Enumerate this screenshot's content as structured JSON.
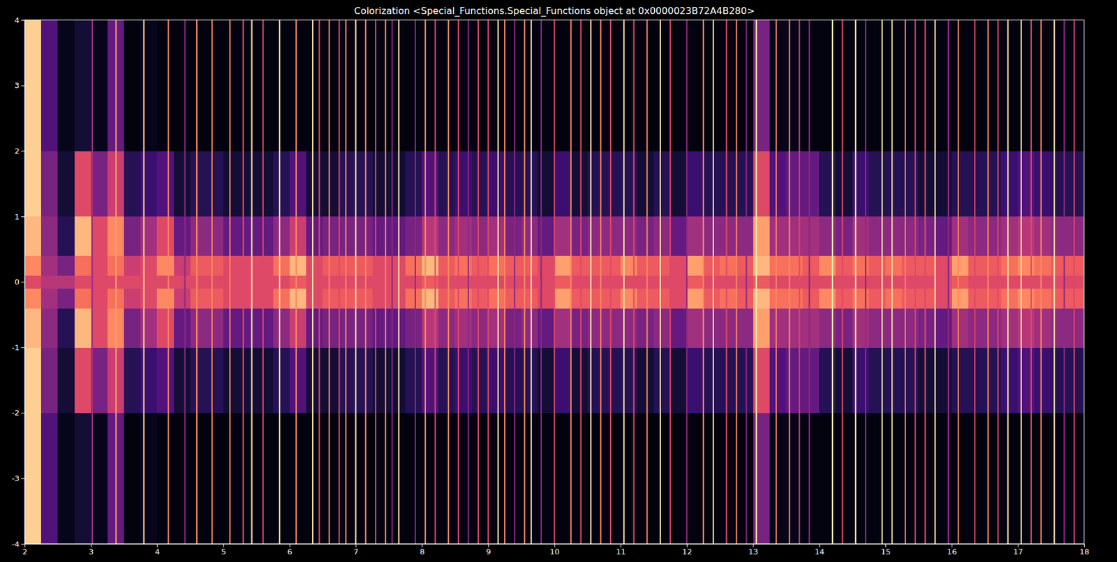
{
  "chart_data": {
    "type": "heatmap",
    "title": "Colorization <Special_Functions.Special_Functions object at 0x0000023B72A4B280>",
    "xlim": [
      2,
      18
    ],
    "ylim": [
      -4,
      4
    ],
    "xticks": [
      2,
      3,
      4,
      5,
      6,
      7,
      8,
      9,
      10,
      11,
      12,
      13,
      14,
      15,
      16,
      17,
      18
    ],
    "yticks": [
      -4,
      -3,
      -2,
      -1,
      0,
      1,
      2,
      3,
      4
    ],
    "x_edges": [
      2,
      2.25,
      2.5,
      2.75,
      3,
      3.25,
      3.5,
      3.75,
      4,
      4.25,
      4.5,
      4.75,
      5,
      5.25,
      5.5,
      5.75,
      6,
      6.25,
      6.5,
      6.75,
      7,
      7.25,
      7.5,
      7.75,
      8,
      8.25,
      8.5,
      8.75,
      9,
      9.25,
      9.5,
      9.75,
      10,
      10.25,
      10.5,
      10.75,
      11,
      11.25,
      11.5,
      11.75,
      12,
      12.25,
      12.5,
      12.75,
      13,
      13.25,
      13.5,
      13.75,
      14,
      14.25,
      14.5,
      14.75,
      15,
      15.25,
      15.5,
      15.75,
      16,
      16.25,
      16.5,
      16.75,
      17,
      17.25,
      17.5,
      17.75,
      18
    ],
    "y_edges": [
      -4,
      -2,
      -1,
      -0.4,
      -0.1,
      0.1,
      0.4,
      1,
      2,
      4
    ],
    "cells": [
      [
        0.9,
        0.25,
        0.05,
        0.1,
        0.05,
        0.3,
        0.03,
        0.05,
        0.03,
        0.03,
        0.03,
        0.03,
        0.03,
        0.03,
        0.03,
        0.03,
        0.03,
        0.03,
        0.03,
        0.03,
        0.03,
        0.03,
        0.03,
        0.03,
        0.03,
        0.03,
        0.03,
        0.03,
        0.03,
        0.03,
        0.03,
        0.03,
        0.03,
        0.03,
        0.03,
        0.03,
        0.03,
        0.03,
        0.03,
        0.03,
        0.03,
        0.03,
        0.03,
        0.03,
        0.35,
        0.05,
        0.05,
        0.03,
        0.03,
        0.03,
        0.03,
        0.03,
        0.03,
        0.03,
        0.03,
        0.03,
        0.03,
        0.03,
        0.03,
        0.03,
        0.03,
        0.03,
        0.03,
        0.03
      ],
      [
        0.9,
        0.35,
        0.1,
        0.6,
        0.35,
        0.55,
        0.15,
        0.2,
        0.25,
        0.1,
        0.15,
        0.15,
        0.1,
        0.1,
        0.1,
        0.15,
        0.25,
        0.1,
        0.1,
        0.15,
        0.15,
        0.1,
        0.1,
        0.15,
        0.25,
        0.15,
        0.2,
        0.15,
        0.2,
        0.15,
        0.15,
        0.1,
        0.2,
        0.1,
        0.15,
        0.15,
        0.15,
        0.1,
        0.15,
        0.1,
        0.2,
        0.15,
        0.15,
        0.15,
        0.6,
        0.25,
        0.3,
        0.3,
        0.15,
        0.1,
        0.2,
        0.15,
        0.15,
        0.15,
        0.1,
        0.1,
        0.15,
        0.15,
        0.15,
        0.2,
        0.25,
        0.2,
        0.15,
        0.15
      ],
      [
        0.85,
        0.4,
        0.15,
        0.85,
        0.6,
        0.75,
        0.35,
        0.45,
        0.6,
        0.3,
        0.4,
        0.4,
        0.3,
        0.3,
        0.3,
        0.4,
        0.55,
        0.3,
        0.35,
        0.35,
        0.35,
        0.3,
        0.3,
        0.35,
        0.5,
        0.4,
        0.45,
        0.4,
        0.45,
        0.35,
        0.4,
        0.3,
        0.45,
        0.35,
        0.4,
        0.4,
        0.4,
        0.35,
        0.4,
        0.3,
        0.45,
        0.4,
        0.4,
        0.4,
        0.8,
        0.45,
        0.45,
        0.45,
        0.4,
        0.35,
        0.45,
        0.4,
        0.4,
        0.4,
        0.35,
        0.3,
        0.45,
        0.4,
        0.4,
        0.45,
        0.5,
        0.45,
        0.4,
        0.4
      ],
      [
        0.75,
        0.45,
        0.35,
        0.7,
        0.6,
        0.7,
        0.55,
        0.6,
        0.75,
        0.55,
        0.65,
        0.65,
        0.6,
        0.6,
        0.6,
        0.7,
        0.85,
        0.6,
        0.65,
        0.65,
        0.65,
        0.6,
        0.6,
        0.7,
        0.85,
        0.65,
        0.7,
        0.65,
        0.7,
        0.65,
        0.65,
        0.6,
        0.8,
        0.65,
        0.65,
        0.65,
        0.75,
        0.65,
        0.65,
        0.6,
        0.8,
        0.65,
        0.7,
        0.65,
        0.85,
        0.7,
        0.7,
        0.65,
        0.75,
        0.65,
        0.7,
        0.65,
        0.7,
        0.65,
        0.65,
        0.6,
        0.8,
        0.65,
        0.65,
        0.7,
        0.75,
        0.7,
        0.65,
        0.65
      ],
      [
        0.6,
        0.5,
        0.5,
        0.6,
        0.6,
        0.6,
        0.6,
        0.6,
        0.6,
        0.6,
        0.6,
        0.6,
        0.6,
        0.6,
        0.6,
        0.6,
        0.65,
        0.6,
        0.6,
        0.6,
        0.6,
        0.6,
        0.6,
        0.6,
        0.65,
        0.6,
        0.6,
        0.6,
        0.6,
        0.6,
        0.6,
        0.6,
        0.65,
        0.6,
        0.6,
        0.6,
        0.6,
        0.6,
        0.6,
        0.6,
        0.65,
        0.6,
        0.6,
        0.6,
        0.65,
        0.6,
        0.6,
        0.6,
        0.6,
        0.6,
        0.6,
        0.6,
        0.6,
        0.6,
        0.6,
        0.6,
        0.65,
        0.6,
        0.6,
        0.6,
        0.6,
        0.6,
        0.6,
        0.6
      ],
      [
        0.75,
        0.45,
        0.35,
        0.7,
        0.6,
        0.7,
        0.55,
        0.6,
        0.75,
        0.55,
        0.65,
        0.65,
        0.6,
        0.6,
        0.6,
        0.7,
        0.85,
        0.6,
        0.65,
        0.65,
        0.65,
        0.6,
        0.6,
        0.7,
        0.85,
        0.65,
        0.7,
        0.65,
        0.7,
        0.65,
        0.65,
        0.6,
        0.8,
        0.65,
        0.65,
        0.65,
        0.75,
        0.65,
        0.65,
        0.6,
        0.8,
        0.65,
        0.7,
        0.65,
        0.85,
        0.7,
        0.7,
        0.65,
        0.75,
        0.65,
        0.7,
        0.65,
        0.7,
        0.65,
        0.65,
        0.6,
        0.8,
        0.65,
        0.65,
        0.7,
        0.75,
        0.7,
        0.65,
        0.65
      ],
      [
        0.85,
        0.4,
        0.15,
        0.85,
        0.6,
        0.75,
        0.35,
        0.45,
        0.6,
        0.3,
        0.4,
        0.4,
        0.3,
        0.3,
        0.3,
        0.4,
        0.55,
        0.3,
        0.35,
        0.35,
        0.35,
        0.3,
        0.3,
        0.35,
        0.5,
        0.4,
        0.45,
        0.4,
        0.45,
        0.35,
        0.4,
        0.3,
        0.45,
        0.35,
        0.4,
        0.4,
        0.4,
        0.35,
        0.4,
        0.3,
        0.45,
        0.4,
        0.4,
        0.4,
        0.8,
        0.45,
        0.45,
        0.45,
        0.4,
        0.35,
        0.45,
        0.4,
        0.4,
        0.4,
        0.35,
        0.3,
        0.45,
        0.4,
        0.4,
        0.45,
        0.5,
        0.45,
        0.4,
        0.4
      ],
      [
        0.9,
        0.35,
        0.1,
        0.6,
        0.35,
        0.55,
        0.15,
        0.2,
        0.25,
        0.1,
        0.15,
        0.15,
        0.1,
        0.1,
        0.1,
        0.15,
        0.25,
        0.1,
        0.1,
        0.15,
        0.15,
        0.1,
        0.1,
        0.15,
        0.25,
        0.15,
        0.2,
        0.15,
        0.2,
        0.15,
        0.15,
        0.1,
        0.2,
        0.1,
        0.15,
        0.15,
        0.15,
        0.1,
        0.15,
        0.1,
        0.2,
        0.15,
        0.15,
        0.15,
        0.6,
        0.25,
        0.3,
        0.3,
        0.15,
        0.1,
        0.2,
        0.15,
        0.15,
        0.15,
        0.1,
        0.1,
        0.15,
        0.15,
        0.15,
        0.2,
        0.25,
        0.2,
        0.15,
        0.15
      ],
      [
        0.9,
        0.25,
        0.05,
        0.1,
        0.05,
        0.3,
        0.03,
        0.05,
        0.03,
        0.03,
        0.03,
        0.03,
        0.03,
        0.03,
        0.03,
        0.03,
        0.03,
        0.03,
        0.03,
        0.03,
        0.03,
        0.03,
        0.03,
        0.03,
        0.03,
        0.03,
        0.03,
        0.03,
        0.03,
        0.03,
        0.03,
        0.03,
        0.03,
        0.03,
        0.03,
        0.03,
        0.03,
        0.03,
        0.03,
        0.03,
        0.03,
        0.03,
        0.03,
        0.03,
        0.35,
        0.05,
        0.05,
        0.03,
        0.03,
        0.03,
        0.03,
        0.03,
        0.03,
        0.03,
        0.03,
        0.03,
        0.03,
        0.03,
        0.03,
        0.03,
        0.03,
        0.03,
        0.03,
        0.03
      ]
    ],
    "lines": {
      "x": [
        3.02,
        3.38,
        3.8,
        4.17,
        4.42,
        4.6,
        4.83,
        5.1,
        5.3,
        5.43,
        5.6,
        5.85,
        6.1,
        6.35,
        6.45,
        6.6,
        6.75,
        6.85,
        7.0,
        7.15,
        7.3,
        7.45,
        7.55,
        7.65,
        7.9,
        8.05,
        8.2,
        8.4,
        8.55,
        8.7,
        8.85,
        9.0,
        9.15,
        9.25,
        9.4,
        9.55,
        9.65,
        9.8,
        10.0,
        10.25,
        10.4,
        10.55,
        10.7,
        10.85,
        11.05,
        11.2,
        11.4,
        11.6,
        11.75,
        12.0,
        12.25,
        12.4,
        12.6,
        12.75,
        12.9,
        13.05,
        13.35,
        13.55,
        13.7,
        13.85,
        14.2,
        14.35,
        14.55,
        14.7,
        14.95,
        15.1,
        15.3,
        15.45,
        15.6,
        15.75,
        15.95,
        16.1,
        16.35,
        16.55,
        16.7,
        16.85,
        17.05,
        17.2,
        17.35,
        17.55,
        17.7,
        17.85
      ],
      "values": [
        0.45,
        0.8,
        0.9,
        0.75,
        0.4,
        0.75,
        0.75,
        0.75,
        0.6,
        0.95,
        0.6,
        0.95,
        0.75,
        0.95,
        0.6,
        0.75,
        0.6,
        0.75,
        0.95,
        0.75,
        0.6,
        0.75,
        0.4,
        0.95,
        0.4,
        0.75,
        0.6,
        0.75,
        0.6,
        0.4,
        0.6,
        0.6,
        0.95,
        0.75,
        0.4,
        0.75,
        0.95,
        0.4,
        0.6,
        0.75,
        0.6,
        0.95,
        0.75,
        0.6,
        0.95,
        0.6,
        0.75,
        0.95,
        0.6,
        0.4,
        0.75,
        0.95,
        0.6,
        0.75,
        0.4,
        0.95,
        0.75,
        0.75,
        0.6,
        0.4,
        0.95,
        0.6,
        0.95,
        0.4,
        0.95,
        0.95,
        0.75,
        0.6,
        0.6,
        0.95,
        0.4,
        0.75,
        0.6,
        0.75,
        0.6,
        0.95,
        0.95,
        0.6,
        0.75,
        0.95,
        0.4,
        0.6
      ]
    }
  }
}
